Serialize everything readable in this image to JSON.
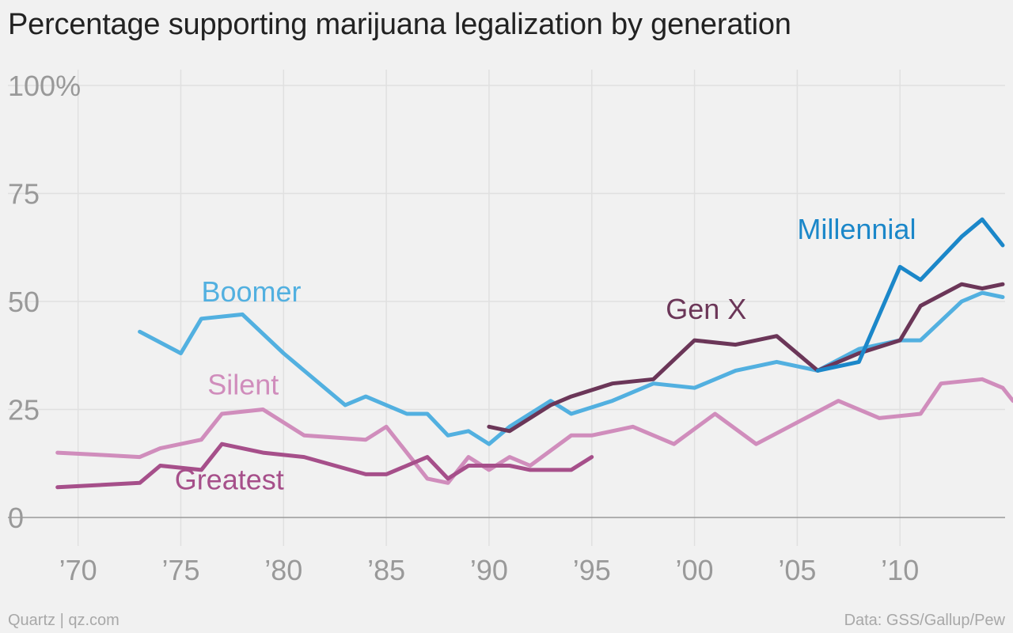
{
  "title": "Percentage supporting marijuana legalization by generation",
  "footer": {
    "source_left": "Quartz | qz.com",
    "source_right": "Data: GSS/Gallup/Pew"
  },
  "chart_data": {
    "type": "line",
    "title": "Percentage supporting marijuana legalization by generation",
    "xlim": [
      1966.2,
      2015.5
    ],
    "ylim": [
      0,
      100
    ],
    "x_ticks": [
      1970,
      1975,
      1980,
      1985,
      1990,
      1995,
      2000,
      2005,
      2010
    ],
    "x_tick_labels": [
      "’70",
      "’75",
      "’80",
      "’85",
      "’90",
      "’95",
      "’00",
      "’05",
      "’10"
    ],
    "y_ticks": [
      0,
      25,
      50,
      75,
      100
    ],
    "y_tick_labels": [
      "0",
      "25",
      "50",
      "75",
      "100%"
    ],
    "grid": true,
    "series": [
      {
        "name": "Silent",
        "color": "#d08dbc",
        "points": [
          [
            1969,
            15
          ],
          [
            1971,
            14.5
          ],
          [
            1973,
            14
          ],
          [
            1974,
            16
          ],
          [
            1976,
            18
          ],
          [
            1977,
            24
          ],
          [
            1979,
            25
          ],
          [
            1981,
            19
          ],
          [
            1984,
            18
          ],
          [
            1985,
            21
          ],
          [
            1987,
            9
          ],
          [
            1988,
            8
          ],
          [
            1989,
            14
          ],
          [
            1990,
            11
          ],
          [
            1991,
            14
          ],
          [
            1992,
            12
          ],
          [
            1994,
            19
          ],
          [
            1995,
            19
          ],
          [
            1997,
            21
          ],
          [
            1999,
            17
          ],
          [
            2001,
            24
          ],
          [
            2003,
            17
          ],
          [
            2007,
            27
          ],
          [
            2009,
            23
          ],
          [
            2011,
            24
          ],
          [
            2012,
            31
          ],
          [
            2014,
            32
          ],
          [
            2015,
            30
          ],
          [
            2015.5,
            27
          ]
        ]
      },
      {
        "name": "Greatest",
        "color": "#a64f8a",
        "points": [
          [
            1969,
            7
          ],
          [
            1973,
            8
          ],
          [
            1974,
            12
          ],
          [
            1976,
            11
          ],
          [
            1977,
            17
          ],
          [
            1979,
            15
          ],
          [
            1981,
            14
          ],
          [
            1984,
            10
          ],
          [
            1985,
            10
          ],
          [
            1987,
            14
          ],
          [
            1988,
            9
          ],
          [
            1989,
            12
          ],
          [
            1991,
            12
          ],
          [
            1992,
            11
          ],
          [
            1994,
            11
          ],
          [
            1995,
            14
          ]
        ]
      },
      {
        "name": "Boomer",
        "color": "#52b0e0",
        "points": [
          [
            1973,
            43
          ],
          [
            1975,
            38
          ],
          [
            1976,
            46
          ],
          [
            1978,
            47
          ],
          [
            1980,
            38
          ],
          [
            1983,
            26
          ],
          [
            1984,
            28
          ],
          [
            1986,
            24
          ],
          [
            1987,
            24
          ],
          [
            1988,
            19
          ],
          [
            1989,
            20
          ],
          [
            1990,
            17
          ],
          [
            1991,
            21
          ],
          [
            1993,
            27
          ],
          [
            1994,
            24
          ],
          [
            1996,
            27
          ],
          [
            1998,
            31
          ],
          [
            2000,
            30
          ],
          [
            2002,
            34
          ],
          [
            2004,
            36
          ],
          [
            2006,
            34
          ],
          [
            2008,
            39
          ],
          [
            2010,
            41
          ],
          [
            2011,
            41
          ],
          [
            2013,
            50
          ],
          [
            2014,
            52
          ],
          [
            2015,
            51
          ]
        ]
      },
      {
        "name": "Gen X",
        "color": "#6b3658",
        "points": [
          [
            1990,
            21
          ],
          [
            1991,
            20
          ],
          [
            1993,
            26
          ],
          [
            1994,
            28
          ],
          [
            1996,
            31
          ],
          [
            1998,
            32
          ],
          [
            2000,
            41
          ],
          [
            2002,
            40
          ],
          [
            2004,
            42
          ],
          [
            2006,
            34
          ],
          [
            2008,
            38
          ],
          [
            2010,
            41
          ],
          [
            2011,
            49
          ],
          [
            2013,
            54
          ],
          [
            2014,
            53
          ],
          [
            2015,
            54
          ]
        ]
      },
      {
        "name": "Millennial",
        "color": "#1b87c9",
        "points": [
          [
            2006,
            34
          ],
          [
            2008,
            36
          ],
          [
            2010,
            58
          ],
          [
            2011,
            55
          ],
          [
            2013,
            65
          ],
          [
            2014,
            69
          ],
          [
            2015,
            63
          ]
        ]
      }
    ],
    "annotations": [
      {
        "text": "Boomer",
        "color": "#52b0e0",
        "x": 1976,
        "y": 50
      },
      {
        "text": "Silent",
        "color": "#d08dbc",
        "x": 1976.3,
        "y": 28.5
      },
      {
        "text": "Greatest",
        "color": "#a64f8a",
        "x": 1974.7,
        "y": 6.5
      },
      {
        "text": "Gen X",
        "color": "#6b3658",
        "x": 1998.6,
        "y": 46
      },
      {
        "text": "Millennial",
        "color": "#1b87c9",
        "x": 2005,
        "y": 64.5
      }
    ]
  }
}
